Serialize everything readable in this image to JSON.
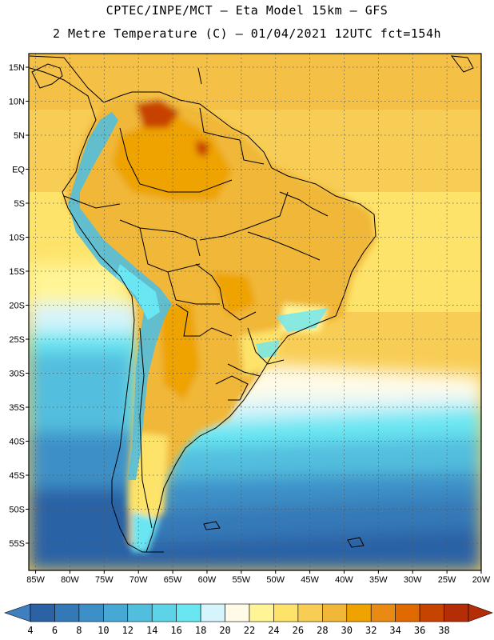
{
  "header": {
    "line1": "CPTEC/INPE/MCT –  Eta Model 15km – GFS",
    "line2": "2 Metre Temperature (C) – 01/04/2021 12UTC fct=154h"
  },
  "map": {
    "lat_labels": [
      "15N",
      "10N",
      "5N",
      "EQ",
      "5S",
      "10S",
      "15S",
      "20S",
      "25S",
      "30S",
      "35S",
      "40S",
      "45S",
      "50S",
      "55S"
    ],
    "lat_values": [
      15,
      10,
      5,
      0,
      -5,
      -10,
      -15,
      -20,
      -25,
      -30,
      -35,
      -40,
      -45,
      -50,
      -55
    ],
    "lon_labels": [
      "85W",
      "80W",
      "75W",
      "70W",
      "65W",
      "60W",
      "55W",
      "50W",
      "45W",
      "40W",
      "35W",
      "30W",
      "25W",
      "20W"
    ],
    "lon_values": [
      -85,
      -80,
      -75,
      -70,
      -65,
      -60,
      -55,
      -50,
      -45,
      -40,
      -35,
      -30,
      -25,
      -20
    ],
    "extent": {
      "lon_min": -86,
      "lon_max": -20,
      "lat_min": -59,
      "lat_max": 17
    }
  },
  "colorbar": {
    "labels": [
      "4",
      "6",
      "8",
      "10",
      "12",
      "14",
      "16",
      "18",
      "20",
      "22",
      "24",
      "26",
      "28",
      "30",
      "32",
      "34",
      "36",
      "38"
    ],
    "colors": [
      "#2b62a6",
      "#3479b7",
      "#3d90c7",
      "#47a8d4",
      "#52bede",
      "#5dd3e8",
      "#6ae6f2",
      "#d6f4fb",
      "#fffbe8",
      "#fff597",
      "#fde36a",
      "#f8cd55",
      "#f0b739",
      "#eea300",
      "#e88a14",
      "#e06a00",
      "#c74300",
      "#b52d07"
    ],
    "low_color": "#3f7fbf",
    "high_color": "#b52d07"
  }
}
